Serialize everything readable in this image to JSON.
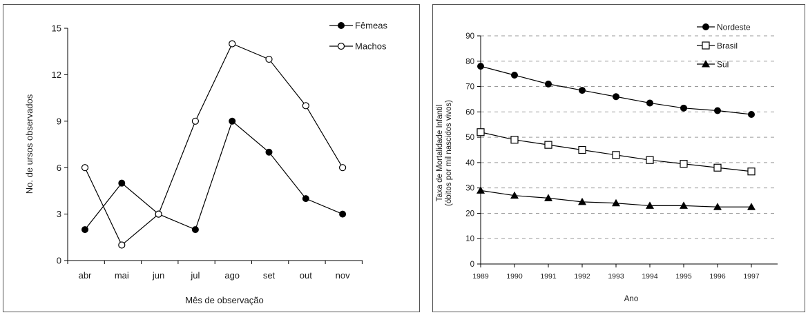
{
  "chart_data": [
    {
      "type": "line",
      "categories": [
        "abr",
        "mai",
        "jun",
        "jul",
        "ago",
        "set",
        "out",
        "nov"
      ],
      "series": [
        {
          "name": "Fêmeas",
          "values": [
            2,
            5,
            3,
            2,
            9,
            7,
            4,
            3
          ],
          "marker": "filled-circle"
        },
        {
          "name": "Machos",
          "values": [
            6,
            1,
            3,
            9,
            14,
            13,
            10,
            6
          ],
          "marker": "open-circle"
        }
      ],
      "yticks": [
        "0",
        "3",
        "6",
        "9",
        "12",
        "15"
      ],
      "ylim": [
        0,
        15
      ],
      "xlabel": "Mês de observação",
      "ylabel": "No. de ursos observados",
      "grid": false,
      "legend": "top-right"
    },
    {
      "type": "line",
      "categories": [
        "1989",
        "1990",
        "1991",
        "1992",
        "1993",
        "1994",
        "1995",
        "1996",
        "1997"
      ],
      "series": [
        {
          "name": "Nordeste",
          "values": [
            78,
            74.5,
            71,
            68.5,
            66,
            63.5,
            61.5,
            60.5,
            59
          ],
          "marker": "filled-circle"
        },
        {
          "name": "Brasil",
          "values": [
            52,
            49,
            47,
            45,
            43,
            41,
            39.5,
            38,
            36.5
          ],
          "marker": "open-square"
        },
        {
          "name": "Sul",
          "values": [
            29,
            27,
            26,
            24.5,
            24,
            23,
            23,
            22.5,
            22.5
          ],
          "marker": "filled-triangle"
        }
      ],
      "yticks": [
        "0",
        "10",
        "20",
        "30",
        "40",
        "50",
        "60",
        "70",
        "80",
        "90"
      ],
      "ylim": [
        0,
        90
      ],
      "xlabel": "Ano",
      "ylabel": [
        "Taxa de Mortalidade Infantil",
        "(óbitos por mil nascidos vivos)"
      ],
      "grid": true,
      "legend": "top-right"
    }
  ]
}
